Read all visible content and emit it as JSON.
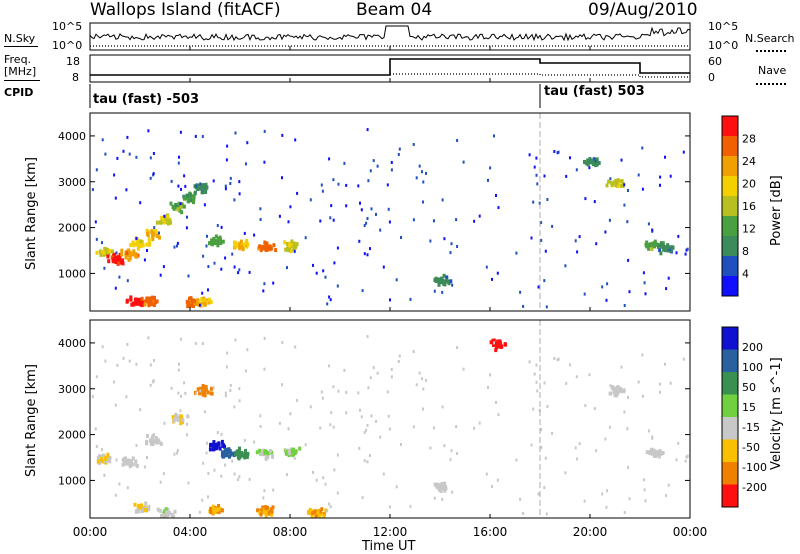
{
  "header": {
    "station": "Wallops Island (fitACF)",
    "beam": "Beam 04",
    "date": "09/Aug/2010"
  },
  "top_panels": {
    "nsky_label": "N.Sky",
    "nsky_ticks": [
      "10^5",
      "10^0"
    ],
    "nsearch_label": "N.Search",
    "nsearch_ticks": [
      "10^5",
      "10^0"
    ],
    "freq_label": "Freq.",
    "freq_unit": "[MHz]",
    "freq_ticks": [
      "18",
      "8"
    ],
    "nave_label": "Nave",
    "nave_ticks": [
      "60",
      "0"
    ],
    "cpid_label": "CPID",
    "cpid_segments": [
      {
        "label": "tau (fast) -503",
        "start_hour": 0
      },
      {
        "label": "tau (fast) 503",
        "start_hour": 18
      }
    ]
  },
  "axes": {
    "ylabel": "Slant Range [km]",
    "xlabel": "Time UT",
    "x_ticks": [
      "00:00",
      "04:00",
      "08:00",
      "12:00",
      "16:00",
      "20:00",
      "00:00"
    ],
    "y_ticks": [
      "1000",
      "2000",
      "3000",
      "4000"
    ]
  },
  "colorbars": {
    "power": {
      "label": "Power [dB]",
      "ticks": [
        "4",
        "8",
        "12",
        "16",
        "20",
        "24",
        "28"
      ],
      "colors": [
        "#1010ff",
        "#2050c0",
        "#3d8a5a",
        "#4aa040",
        "#b8c020",
        "#f5d000",
        "#f0a000",
        "#f06000",
        "#ff1010"
      ]
    },
    "velocity": {
      "label": "Velocity [m s^-1]",
      "ticks": [
        "200",
        "100",
        "50",
        "15",
        "-15",
        "-50",
        "-100",
        "-200"
      ],
      "colors": [
        "#1010d0",
        "#2860a0",
        "#3a9050",
        "#70d040",
        "#c8c8c8",
        "#f8c000",
        "#f08000",
        "#ff1010"
      ]
    }
  },
  "chart_data": [
    {
      "type": "heatmap",
      "title": "Power [dB]",
      "xlabel": "Time UT",
      "ylabel": "Slant Range [km]",
      "xlim": [
        0,
        24
      ],
      "ylim": [
        180,
        4500
      ],
      "series": [
        {
          "name": "power",
          "points": [
            [
              0.5,
              1500,
              16
            ],
            [
              1.0,
              1350,
              28
            ],
            [
              1.5,
              1450,
              22
            ],
            [
              2.0,
              1700,
              18
            ],
            [
              2.5,
              1900,
              20
            ],
            [
              3.0,
              2200,
              16
            ],
            [
              3.5,
              2500,
              12
            ],
            [
              4.0,
              2700,
              10
            ],
            [
              4.5,
              2900,
              8
            ],
            [
              1.8,
              400,
              28
            ],
            [
              2.3,
              420,
              24
            ],
            [
              4.0,
              400,
              24
            ],
            [
              4.5,
              420,
              20
            ],
            [
              5.0,
              1750,
              12
            ],
            [
              6.0,
              1650,
              20
            ],
            [
              7.0,
              1600,
              24
            ],
            [
              8.0,
              1650,
              16
            ],
            [
              14.0,
              900,
              8
            ],
            [
              20.0,
              3500,
              8
            ],
            [
              21.0,
              3000,
              16
            ],
            [
              22.5,
              1650,
              12
            ],
            [
              23.0,
              1600,
              8
            ]
          ]
        }
      ]
    },
    {
      "type": "heatmap",
      "title": "Velocity [m s^-1]",
      "xlabel": "Time UT",
      "ylabel": "Slant Range [km]",
      "xlim": [
        0,
        24
      ],
      "ylim": [
        180,
        4500
      ],
      "series": [
        {
          "name": "velocity",
          "points": [
            [
              0.5,
              1500,
              -15
            ],
            [
              1.5,
              1450,
              0
            ],
            [
              2.5,
              1900,
              0
            ],
            [
              3.5,
              2400,
              -15
            ],
            [
              4.5,
              3000,
              -100
            ],
            [
              5.0,
              1800,
              200
            ],
            [
              5.5,
              1650,
              100
            ],
            [
              6.0,
              1620,
              50
            ],
            [
              7.0,
              1620,
              15
            ],
            [
              8.0,
              1650,
              15
            ],
            [
              2.0,
              420,
              -15
            ],
            [
              3.0,
              300,
              15
            ],
            [
              5.0,
              380,
              -50
            ],
            [
              7.0,
              360,
              -50
            ],
            [
              9.0,
              350,
              -50
            ],
            [
              14.0,
              900,
              0
            ],
            [
              16.3,
              4000,
              -200
            ],
            [
              21.0,
              3000,
              0
            ],
            [
              22.5,
              1650,
              0
            ]
          ]
        }
      ]
    }
  ]
}
